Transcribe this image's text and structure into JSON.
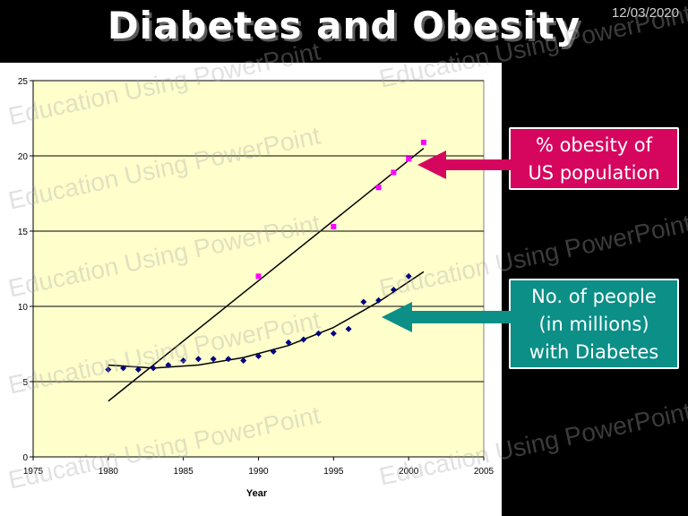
{
  "slide": {
    "title": "Diabetes and Obesity",
    "date": "12/03/2020",
    "watermark": "Education Using PowerPoint"
  },
  "callouts": {
    "obesity": [
      "% obesity of",
      "US population"
    ],
    "diabetes": [
      "No. of people",
      "(in millions)",
      "with Diabetes"
    ]
  },
  "colors": {
    "plot_background": "#ffffcc",
    "obesity_points": "#ff00ff",
    "diabetes_points": "#000080",
    "obesity_callout": "#d6065f",
    "diabetes_callout": "#0b8f87"
  },
  "chart_data": {
    "type": "scatter",
    "title": "",
    "xlabel": "Year",
    "ylabel": "",
    "xlim": [
      1975,
      2005
    ],
    "ylim": [
      0,
      25
    ],
    "x_ticks": [
      1975,
      1980,
      1985,
      1990,
      1995,
      2000,
      2005
    ],
    "y_ticks": [
      0,
      5,
      10,
      15,
      20,
      25
    ],
    "grid": "horizontal",
    "series": [
      {
        "key": "obesity",
        "marker": "square",
        "x": [
          1990,
          1995,
          1998,
          1999,
          2000,
          2001
        ],
        "y": [
          12.0,
          15.3,
          17.9,
          18.9,
          19.8,
          20.9
        ],
        "trendline": {
          "type": "linear",
          "x": [
            1980,
            2001
          ],
          "y": [
            3.7,
            20.5
          ]
        }
      },
      {
        "key": "diabetes",
        "marker": "diamond",
        "x": [
          1980,
          1981,
          1982,
          1983,
          1984,
          1985,
          1986,
          1987,
          1988,
          1989,
          1990,
          1991,
          1992,
          1993,
          1994,
          1995,
          1996,
          1997,
          1998,
          1999,
          2000
        ],
        "y": [
          5.8,
          5.9,
          5.8,
          5.9,
          6.1,
          6.4,
          6.5,
          6.5,
          6.5,
          6.4,
          6.7,
          7.0,
          7.6,
          7.8,
          8.2,
          8.2,
          8.5,
          10.3,
          10.4,
          11.1,
          12.0
        ],
        "trendline": {
          "type": "polynomial",
          "x": [
            1980,
            1983,
            1986,
            1989,
            1992,
            1995,
            1998,
            2001
          ],
          "y": [
            6.1,
            5.9,
            6.1,
            6.6,
            7.4,
            8.6,
            10.3,
            12.3
          ]
        }
      }
    ]
  }
}
